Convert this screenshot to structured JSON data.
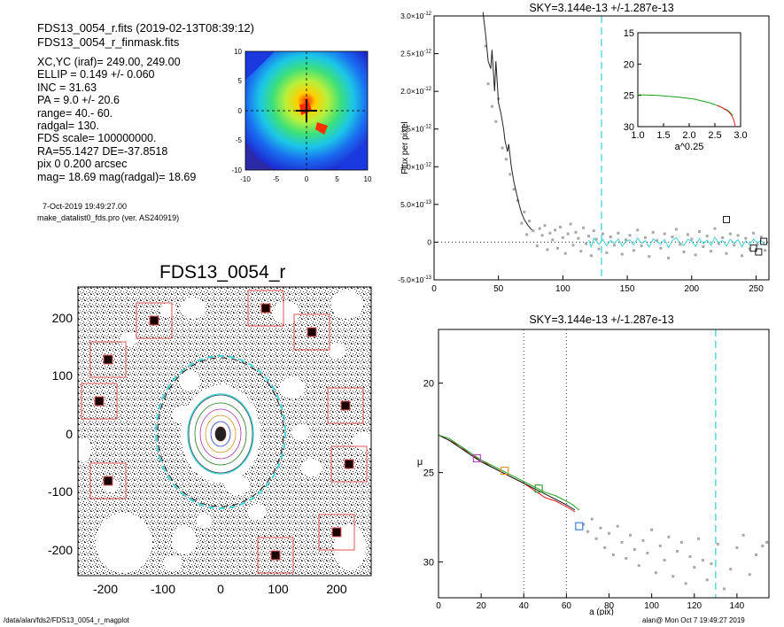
{
  "header": {
    "file_line": "FDS13_0054_r.fits  (2019-02-13T08:39:12)",
    "mask_line": "FDS13_0054_r_finmask.fits"
  },
  "info": {
    "lines": [
      "XC,YC (iraf)=   249.00, 249.00",
      "ELLIP = 0.149 +/- 0.060",
      "INC   = 31.63",
      "PA    =  9.0 +/-  20.6",
      "range=  40.-  60.",
      "radgal=  130.",
      "FDS scale=  100000000.",
      "RA=55.1427  DE=-37.8518",
      "pix 0 0.200 arcsec",
      "mag=  18.69  mag(radgal)=  18.69"
    ],
    "date_line": "7-Oct-2019 19:49:27.00",
    "program_line": "make_datalist0_fds.pro (ver. AS240919)"
  },
  "thumbnail": {
    "xticks": [
      "-10",
      "-5",
      "0",
      "5",
      "10"
    ],
    "yticks": [
      "10",
      "5",
      "0",
      "-5",
      "-10"
    ]
  },
  "image_panel": {
    "title": "FDS13_0054_r",
    "xticks": [
      "-200",
      "-100",
      "0",
      "100",
      "200"
    ],
    "yticks": [
      "200",
      "100",
      "0",
      "-100",
      "-200"
    ]
  },
  "footer": {
    "left": "/data/alan/fds2/FDS13_0054_r_magplot",
    "right": "alan@  Mon Oct  7 19:49:27 2019"
  },
  "colors": {
    "dashed_cyan": "#3fd2d8",
    "curve": "#222222",
    "points": "#a8a8a8",
    "inset_green": "#1aa31a",
    "inset_red": "#e02020"
  },
  "chart_data": [
    {
      "type": "line",
      "title": "SKY=3.144e-13 +/-1.287e-13",
      "xlabel": "",
      "ylabel": "Flux per pixel",
      "xlim": [
        0,
        260
      ],
      "ylim": [
        -5e-13,
        3e-12
      ],
      "xticks": [
        "0",
        "50",
        "100",
        "150",
        "200",
        "250"
      ],
      "yticks": [
        {
          "v": 3e-12,
          "m": "3.0×10",
          "e": "-12"
        },
        {
          "v": 2.5e-12,
          "m": "2.5×10",
          "e": "-12"
        },
        {
          "v": 2e-12,
          "m": "2.0×10",
          "e": "-12"
        },
        {
          "v": 1.5e-12,
          "m": "1.5×10",
          "e": "-12"
        },
        {
          "v": 1e-12,
          "m": "1.0×10",
          "e": "-12"
        },
        {
          "v": 5e-13,
          "m": "5.0×10",
          "e": "-13"
        },
        {
          "v": 0,
          "m": "0",
          "e": ""
        },
        {
          "v": -5e-13,
          "m": "-5.0×10",
          "e": "-13"
        }
      ],
      "vline_dashed_x": 130,
      "hline_dotted_y": 0,
      "profile": [
        [
          38,
          3.05e-12
        ],
        [
          40,
          2.75e-12
        ],
        [
          42,
          2.4e-12
        ],
        [
          44,
          2.3e-12
        ],
        [
          45,
          2.55e-12
        ],
        [
          47,
          2e-12
        ],
        [
          48,
          2.4e-12
        ],
        [
          50,
          1.85e-12
        ],
        [
          52,
          1.7e-12
        ],
        [
          54,
          1.5e-12
        ],
        [
          55,
          1.35e-12
        ],
        [
          57,
          1.2e-12
        ],
        [
          58,
          1.3e-12
        ],
        [
          60,
          1e-12
        ],
        [
          62,
          8e-13
        ],
        [
          64,
          6.5e-13
        ],
        [
          66,
          5e-13
        ],
        [
          68,
          3.8e-13
        ],
        [
          70,
          3e-13
        ],
        [
          73,
          2.2e-13
        ],
        [
          76,
          1.6e-13
        ]
      ],
      "sky_points": [
        [
          40,
          2.6e-12
        ],
        [
          42,
          2.1e-12
        ],
        [
          45,
          1.8e-12
        ],
        [
          48,
          1.6e-12
        ],
        [
          50,
          1.9e-12
        ],
        [
          53,
          1.25e-12
        ],
        [
          56,
          1.1e-12
        ],
        [
          59,
          9e-13
        ],
        [
          62,
          7e-13
        ],
        [
          65,
          5.5e-13
        ],
        [
          68,
          2.5e-13
        ],
        [
          70,
          4e-13
        ],
        [
          72,
          1e-13
        ],
        [
          74,
          2.8e-13
        ],
        [
          77,
          1.5e-13
        ],
        [
          80,
          -5e-14
        ],
        [
          82,
          1.8e-13
        ],
        [
          84,
          9e-14
        ],
        [
          86,
          2.2e-13
        ],
        [
          88,
          -1e-13
        ],
        [
          90,
          1.2e-13
        ],
        [
          92,
          3e-14
        ],
        [
          94,
          1.6e-13
        ],
        [
          96,
          -8e-14
        ],
        [
          98,
          2e-13
        ],
        [
          100,
          6e-14
        ],
        [
          102,
          -1.5e-13
        ],
        [
          104,
          1.1e-13
        ],
        [
          106,
          2.4e-13
        ],
        [
          108,
          -4e-14
        ],
        [
          110,
          1.3e-13
        ],
        [
          112,
          5e-14
        ],
        [
          114,
          -1.2e-13
        ],
        [
          116,
          1.9e-13
        ],
        [
          118,
          -2e-14
        ],
        [
          120,
          8e-14
        ],
        [
          122,
          -1.8e-13
        ],
        [
          124,
          1.5e-13
        ],
        [
          126,
          4e-14
        ],
        [
          128,
          -9e-14
        ],
        [
          131,
          1.1e-13
        ],
        [
          134,
          -1.4e-13
        ],
        [
          137,
          7e-14
        ],
        [
          140,
          -4e-14
        ],
        [
          143,
          1.2e-13
        ],
        [
          146,
          -1.6e-13
        ],
        [
          149,
          3e-14
        ],
        [
          152,
          9e-14
        ],
        [
          155,
          -1.1e-13
        ],
        [
          158,
          1.6e-13
        ],
        [
          161,
          -5e-14
        ],
        [
          164,
          6e-14
        ],
        [
          167,
          -1.9e-13
        ],
        [
          170,
          1.3e-13
        ],
        [
          173,
          2e-14
        ],
        [
          176,
          -8e-14
        ],
        [
          179,
          1.1e-13
        ],
        [
          182,
          -2.1e-13
        ],
        [
          185,
          7e-14
        ],
        [
          188,
          1.7e-13
        ],
        [
          191,
          -3e-14
        ],
        [
          194,
          -1.3e-13
        ],
        [
          197,
          1e-13
        ],
        [
          200,
          4e-14
        ],
        [
          203,
          -1.7e-13
        ],
        [
          206,
          1.4e-13
        ],
        [
          209,
          -6e-14
        ],
        [
          212,
          8e-14
        ],
        [
          215,
          -1.2e-13
        ],
        [
          218,
          1.8e-13
        ],
        [
          221,
          -2e-14
        ],
        [
          224,
          6e-14
        ],
        [
          227,
          -1.5e-13
        ],
        [
          230,
          1.1e-13
        ],
        [
          233,
          -4e-14
        ],
        [
          236,
          9e-14
        ],
        [
          239,
          -1.8e-13
        ],
        [
          242,
          5e-14
        ],
        [
          245,
          -9e-14
        ],
        [
          248,
          1.2e-13
        ],
        [
          251,
          -3e-14
        ],
        [
          254,
          7e-14
        ],
        [
          257,
          -1.1e-13
        ]
      ],
      "square_markers": [
        [
          227,
          3e-13
        ],
        [
          248,
          -8e-14
        ],
        [
          252,
          -1.3e-13
        ],
        [
          256,
          1e-14
        ]
      ],
      "inset": {
        "xlabel": "a^0.25",
        "xlim": [
          1.0,
          3.0
        ],
        "ylim": [
          15,
          30
        ],
        "xticks": [
          "1.0",
          "1.5",
          "2.0",
          "2.5",
          "3.0"
        ],
        "yticks": [
          "15",
          "20",
          "25",
          "30"
        ],
        "green": [
          [
            1.0,
            24.9
          ],
          [
            1.4,
            25.0
          ],
          [
            1.8,
            25.3
          ],
          [
            2.1,
            25.6
          ],
          [
            2.4,
            26.2
          ],
          [
            2.6,
            26.8
          ],
          [
            2.75,
            27.4
          ],
          [
            2.85,
            28.2
          ]
        ],
        "red": [
          [
            2.55,
            26.6
          ],
          [
            2.65,
            27.0
          ],
          [
            2.75,
            27.5
          ],
          [
            2.82,
            28.1
          ],
          [
            2.87,
            29.0
          ],
          [
            2.9,
            30.0
          ]
        ]
      }
    },
    {
      "type": "line",
      "title": "SKY=3.144e-13 +/-1.287e-13",
      "xlabel": "a (pix)",
      "ylabel": "μ",
      "xlim": [
        0,
        155
      ],
      "ylim": [
        32,
        17
      ],
      "xticks": [
        "0",
        "20",
        "40",
        "60",
        "80",
        "100",
        "120",
        "140"
      ],
      "yticks": [
        "20",
        "25",
        "30"
      ],
      "vlines_dotted_x": [
        40,
        60
      ],
      "vline_dashed_x": 130,
      "green": [
        [
          0,
          22.9
        ],
        [
          5,
          23.1
        ],
        [
          10,
          23.5
        ],
        [
          15,
          23.9
        ],
        [
          20,
          24.3
        ],
        [
          25,
          24.6
        ],
        [
          30,
          24.9
        ],
        [
          35,
          25.2
        ],
        [
          40,
          25.5
        ],
        [
          45,
          25.8
        ],
        [
          50,
          26.1
        ],
        [
          55,
          26.3
        ],
        [
          60,
          26.6
        ],
        [
          63,
          26.8
        ],
        [
          66,
          27.1
        ]
      ],
      "red": [
        [
          0,
          22.9
        ],
        [
          5,
          23.2
        ],
        [
          10,
          23.5
        ],
        [
          15,
          24.0
        ],
        [
          20,
          24.3
        ],
        [
          25,
          24.7
        ],
        [
          30,
          25.0
        ],
        [
          35,
          25.3
        ],
        [
          40,
          25.6
        ],
        [
          45,
          26.0
        ],
        [
          50,
          26.4
        ],
        [
          55,
          26.6
        ],
        [
          60,
          26.9
        ],
        [
          64,
          27.2
        ]
      ],
      "black": [
        [
          0,
          22.9
        ],
        [
          5,
          23.2
        ],
        [
          10,
          23.6
        ],
        [
          15,
          24.0
        ],
        [
          20,
          24.4
        ],
        [
          25,
          24.7
        ],
        [
          30,
          25.0
        ],
        [
          35,
          25.3
        ],
        [
          40,
          25.6
        ],
        [
          45,
          25.9
        ],
        [
          50,
          26.2
        ],
        [
          55,
          26.5
        ],
        [
          60,
          26.8
        ],
        [
          64,
          27.1
        ]
      ],
      "markers": [
        {
          "x": 18,
          "y": 24.2,
          "color": "#c83cc8"
        },
        {
          "x": 31,
          "y": 24.9,
          "color": "#e09020"
        },
        {
          "x": 47,
          "y": 25.9,
          "color": "#2a9a2a"
        },
        {
          "x": 66,
          "y": 28.0,
          "color": "#2a7ae0"
        }
      ],
      "sky_points": [
        [
          68,
          27.9
        ],
        [
          70,
          28.3
        ],
        [
          72,
          27.6
        ],
        [
          74,
          28.7
        ],
        [
          76,
          28.1
        ],
        [
          78,
          29.2
        ],
        [
          80,
          28.4
        ],
        [
          82,
          29.6
        ],
        [
          84,
          28.0
        ],
        [
          86,
          28.9
        ],
        [
          88,
          29.8
        ],
        [
          90,
          28.5
        ],
        [
          92,
          29.3
        ],
        [
          94,
          30.2
        ],
        [
          96,
          28.8
        ],
        [
          98,
          29.5
        ],
        [
          100,
          28.2
        ],
        [
          102,
          30.6
        ],
        [
          104,
          29.1
        ],
        [
          106,
          29.9
        ],
        [
          108,
          28.6
        ],
        [
          110,
          30.8
        ],
        [
          112,
          29.4
        ],
        [
          114,
          28.9
        ],
        [
          116,
          31.2
        ],
        [
          118,
          29.7
        ],
        [
          120,
          30.3
        ],
        [
          122,
          28.7
        ],
        [
          124,
          29.9
        ],
        [
          126,
          31.0
        ],
        [
          128,
          30.1
        ],
        [
          131,
          29.0
        ],
        [
          134,
          31.5
        ],
        [
          137,
          30.4
        ],
        [
          140,
          29.2
        ],
        [
          143,
          28.5
        ],
        [
          146,
          30.7
        ],
        [
          149,
          29.6
        ],
        [
          152,
          29.1
        ],
        [
          154,
          28.9
        ]
      ]
    }
  ]
}
